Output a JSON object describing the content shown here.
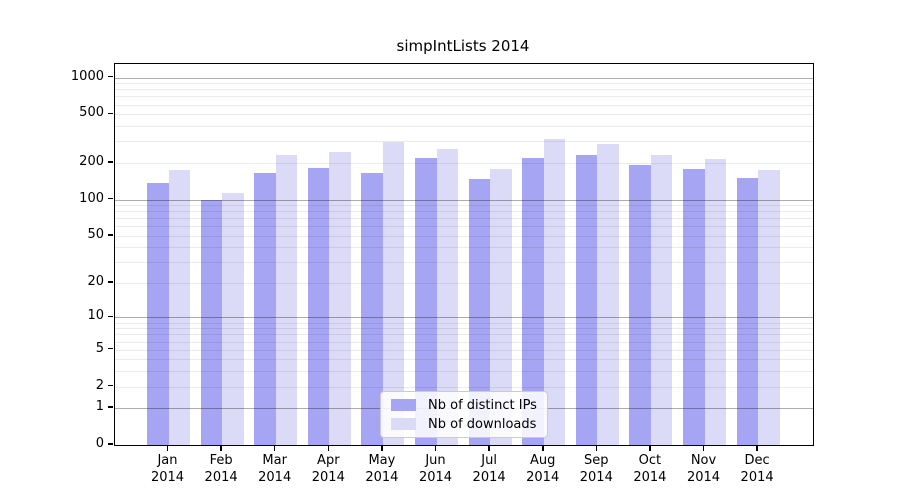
{
  "chart_data": {
    "type": "bar",
    "title": "simpIntLists 2014",
    "categories": [
      "Jan 2014",
      "Feb 2014",
      "Mar 2014",
      "Apr 2014",
      "May 2014",
      "Jun 2014",
      "Jul 2014",
      "Aug 2014",
      "Sep 2014",
      "Oct 2014",
      "Nov 2014",
      "Dec 2014"
    ],
    "series": [
      {
        "name": "Nb of distinct IPs",
        "color": "#a5a5f4",
        "values": [
          136,
          100,
          164,
          183,
          165,
          218,
          148,
          219,
          232,
          191,
          177,
          149
        ]
      },
      {
        "name": "Nb of downloads",
        "color": "#dbdbf8",
        "values": [
          175,
          114,
          231,
          246,
          297,
          261,
          179,
          316,
          284,
          231,
          214,
          175
        ]
      }
    ],
    "xlabel": "",
    "ylabel": "",
    "yscale": "log10(value+1)",
    "ylim": [
      0,
      1288
    ],
    "yticks": [
      1000,
      500,
      200,
      100,
      50,
      20,
      10,
      5,
      2,
      1,
      0
    ],
    "grid": {
      "orientation": "horizontal",
      "major_values": [
        1,
        10,
        100,
        1000
      ],
      "minor_values": [
        2,
        3,
        4,
        5,
        6,
        7,
        8,
        9,
        20,
        30,
        40,
        50,
        60,
        70,
        80,
        90,
        200,
        300,
        400,
        500,
        600,
        700,
        800,
        900
      ],
      "major_color": "rgba(0,0,0,0.32)",
      "minor_color": "rgba(0,0,0,0.08)"
    },
    "legend": {
      "position": "lower-center-inside",
      "items": [
        "Nb of distinct IPs",
        "Nb of downloads"
      ]
    },
    "colors": {
      "distinct_ips": "#a5a5f4",
      "downloads": "#dbdbf8",
      "spine": "#000000",
      "background": "#ffffff"
    }
  }
}
